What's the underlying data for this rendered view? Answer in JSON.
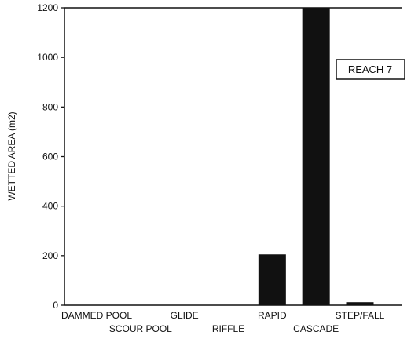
{
  "chart_data": {
    "type": "bar",
    "title": "",
    "xlabel": "",
    "ylabel": "WETTED AREA (m2)",
    "annotation": "REACH 7",
    "categories": [
      "DAMMED POOL",
      "SCOUR POOL",
      "GLIDE",
      "RIFFLE",
      "RAPID",
      "CASCADE",
      "STEP/FALL"
    ],
    "values": [
      0,
      0,
      0,
      0,
      205,
      1200,
      12
    ],
    "ylim": [
      0,
      1200
    ],
    "yticks": [
      0,
      200,
      400,
      600,
      800,
      1000,
      1200
    ],
    "ytick_labels": [
      "0",
      "200",
      "400",
      "600",
      "800",
      "1000",
      "1200"
    ],
    "grid": false,
    "bar_color": "#111111",
    "category_label_rows": [
      0,
      1,
      0,
      1,
      0,
      1,
      0
    ]
  }
}
